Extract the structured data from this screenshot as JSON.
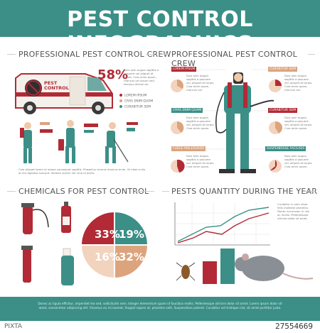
{
  "header": {
    "title": "PEST CONTROL INFOGRAPHICS"
  },
  "sections": {
    "crew_left": "PROFESSIONAL PEST CONTROL CREW",
    "crew_right": "PROFESSIONAL PEST CONTROL CREW",
    "chemicals": "CHEMICALS FOR PEST CONTROL",
    "quantity": "PESTS QUANTITY DURING THE YEAR"
  },
  "van": {
    "door_text_1": "PEST",
    "door_text_2": "CONTROL"
  },
  "crew_stats": {
    "percent": "58%",
    "legend": [
      {
        "label": "LOREM IPSUM",
        "color": "#b22a35"
      },
      {
        "label": "CRAS ENIM QUAM",
        "color": "#dca47d"
      },
      {
        "label": "CURABITUR SEM",
        "color": "#3b8f87"
      }
    ],
    "para": "Duis sem augue sagittis a posuere vel aliquet at turpis. Cras enim quam, rhoncus vel ipsum sed, tempus dictum ex.",
    "para2": "Cras aliquet lorem id neque consequat sagittis. Phasellus viverra rhoncus enim. Ut vitae nulla at nisl egestas suscipit. Aenean auctor vel urna id porta."
  },
  "right_labels": [
    {
      "text": "LOREM IPSUM",
      "color": "red"
    },
    {
      "text": "CURABITUR SEM",
      "color": "orange"
    },
    {
      "text": "CRAS ENIM QUAM",
      "color": "teal"
    },
    {
      "text": "CURABITUR SEM",
      "color": "red"
    },
    {
      "text": "FUSCE MALESUADA",
      "color": "orange"
    },
    {
      "text": "SUSPENDISSE FACILISIS",
      "color": "teal"
    }
  ],
  "right_texts": [
    "Duis sem augue, sagittis a posuere vel, aliquet at turpis. Cras enim quam, rhoncus vel.",
    "Duis sem augue, sagittis a posuere vel, aliquet at turpis. Cras enim quam, rhoncus vel.",
    "Duis sem augue, sagittis a posuere vel, aliquet at turpis. Cras enim quam.",
    "Duis sem augue, sagittis a posuere vel, aliquet at turpis. Cras enim quam.",
    "Duis sem augue, sagittis a posuere vel, aliquet at turpis. Cras enim quam.",
    "Duis sem augue, sagittis a posuere vel, aliquet at turpis. Cras enim quam."
  ],
  "chemicals_pie": {
    "slices": [
      {
        "label": "33%",
        "value": 33,
        "color": "#b22a35"
      },
      {
        "label": "19%",
        "value": 19,
        "color": "#3b8f87"
      },
      {
        "label": "32%",
        "value": 32,
        "color": "#dca47d"
      },
      {
        "label": "16%",
        "value": 16,
        "color": "#f2d3bd"
      }
    ]
  },
  "quantity_chart": {
    "text": "Curabitur in sem vitae felis molestie pharetra. Donec accumsan in nisl ac mollis. Pellentesque ultrices dolor sit amet."
  },
  "footer": {
    "text": "Donec ac ligula efficitur, imperdiet leo sed, sollicitudin sem. Integer elementum quam id faucibus mollis. Pellentesque ultrices dolor sit amet. Lorem ipsum dolor sit amet, consectetur adipiscing elit. Vivamus eu mi laoreet, feugiat sapien at, pharetra velit. Suspendisse potenti. Curabitur vel tristique nisl, sit amet porttitor justo."
  },
  "watermark": {
    "id": "27554669",
    "logo": "PIXTA"
  }
}
